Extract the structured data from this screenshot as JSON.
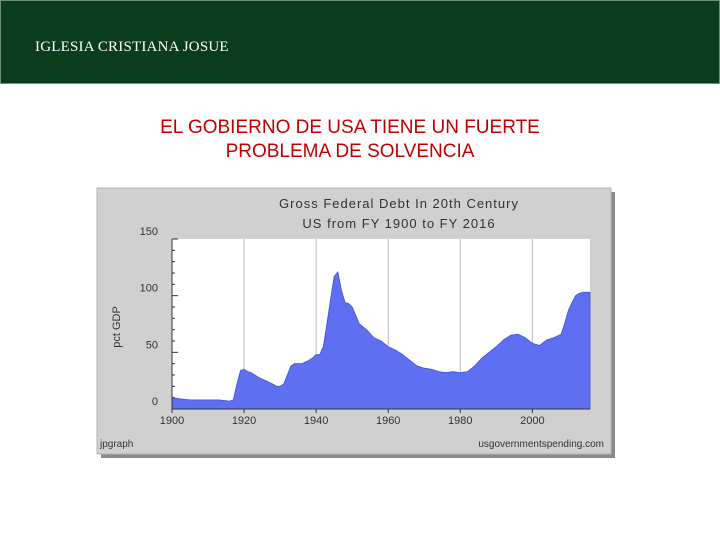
{
  "header": {
    "title": "IGLESIA CRISTIANA JOSUE"
  },
  "slide": {
    "title_line1": "EL GOBIERNO DE USA TIENE UN FUERTE",
    "title_line2": "PROBLEMA DE SOLVENCIA"
  },
  "colors": {
    "header_bg": "#0b3d1c",
    "title_red": "#c00000",
    "chart_frame": "#d0d0d0",
    "area_fill": "#5f6ff2",
    "area_stroke": "#3f4fdc"
  },
  "chart_data": {
    "type": "area",
    "title": "Gross Federal Debt In 20th Century",
    "subtitle": "US from FY 1900 to FY 2016",
    "ylabel": "pct GDP",
    "xlabel": "",
    "xlim": [
      1900,
      2016
    ],
    "ylim": [
      0,
      150
    ],
    "x_ticks": [
      1900,
      1920,
      1940,
      1960,
      1980,
      2000
    ],
    "y_ticks": [
      0,
      50,
      100,
      150
    ],
    "grid": "vertical",
    "footer_left": "jpgraph",
    "footer_right": "usgovernmentspending.com",
    "x": [
      1900,
      1902,
      1905,
      1908,
      1910,
      1913,
      1916,
      1917,
      1918,
      1919,
      1920,
      1921,
      1922,
      1924,
      1926,
      1928,
      1929,
      1930,
      1931,
      1932,
      1933,
      1934,
      1936,
      1938,
      1939,
      1940,
      1941,
      1942,
      1943,
      1944,
      1945,
      1946,
      1947,
      1948,
      1949,
      1950,
      1952,
      1954,
      1956,
      1958,
      1960,
      1962,
      1964,
      1966,
      1968,
      1970,
      1972,
      1974,
      1976,
      1978,
      1980,
      1982,
      1984,
      1986,
      1988,
      1990,
      1992,
      1994,
      1996,
      1998,
      2000,
      2002,
      2004,
      2006,
      2008,
      2009,
      2010,
      2011,
      2012,
      2013,
      2014,
      2016
    ],
    "values": [
      10,
      9,
      8,
      8,
      8,
      8,
      7,
      8,
      22,
      34,
      35,
      33,
      32,
      28,
      25,
      22,
      20,
      20,
      22,
      30,
      38,
      40,
      40,
      43,
      45,
      48,
      48,
      55,
      75,
      97,
      117,
      121,
      105,
      94,
      93,
      90,
      75,
      70,
      63,
      60,
      55,
      52,
      48,
      43,
      38,
      36,
      35,
      33,
      32,
      33,
      32,
      33,
      38,
      45,
      50,
      55,
      61,
      65,
      66,
      63,
      58,
      56,
      61,
      63,
      66,
      76,
      87,
      94,
      100,
      102,
      103,
      103
    ]
  }
}
